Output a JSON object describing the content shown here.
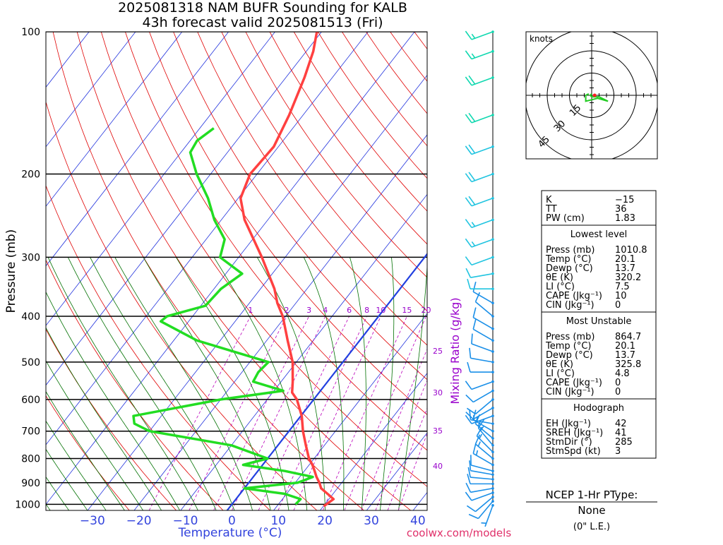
{
  "title": {
    "line1": "2025081318 NAM BUFR Sounding for KALB",
    "line2": "43h forecast valid 2025081513 (Fri)"
  },
  "axes": {
    "ylabel": "Pressure (mb)",
    "xlabel": "Temperature (°C)",
    "mixing_ratio_label": "Mixing Ratio (g/kg)",
    "watermark": "coolwx.com/models"
  },
  "colors": {
    "temperature": "#ff4040",
    "dewpoint": "#22dd22",
    "isotherm": "#2233dd",
    "zero_isotherm": "#2240e0",
    "dry_adiabat": "#e00000",
    "moist_adiabat": "#007000",
    "mixing_ratio": "#bb00bb",
    "mixing_label": "#9900cc",
    "axis_label": "#3344dd",
    "hodograph_line": "#22cc22",
    "watermark": "#e0306a"
  },
  "chart_data": {
    "type": "line",
    "skewt": {
      "pressure_range": [
        1030,
        100
      ],
      "temperature_range_at_1000": [
        -40,
        42
      ],
      "pressure_ticks": [
        100,
        200,
        300,
        400,
        500,
        600,
        700,
        800,
        900,
        1000
      ],
      "temperature_ticks": [
        -30,
        -20,
        -10,
        0,
        10,
        20,
        30,
        40
      ],
      "temperature_tick_labels": [
        "−30",
        "−20",
        "−10",
        "0",
        "10",
        "20",
        "30",
        "40"
      ],
      "mixing_ratio_values": [
        1,
        2,
        3,
        4,
        6,
        8,
        10,
        15,
        20,
        25,
        30,
        35,
        40
      ],
      "mixing_ratio_labels": [
        "1",
        "2",
        "3",
        "4",
        "6",
        "8",
        "10",
        "15",
        "20",
        "25",
        "30",
        "35",
        "40"
      ],
      "grid": true
    },
    "series": [
      {
        "name": "Temperature",
        "points": [
          {
            "p": 1010,
            "t": 20.1
          },
          {
            "p": 1000,
            "t": 20.3
          },
          {
            "p": 975,
            "t": 21.0
          },
          {
            "p": 950,
            "t": 18.8
          },
          {
            "p": 925,
            "t": 16.5
          },
          {
            "p": 900,
            "t": 15.2
          },
          {
            "p": 875,
            "t": 13.6
          },
          {
            "p": 850,
            "t": 12.2
          },
          {
            "p": 825,
            "t": 10.7
          },
          {
            "p": 800,
            "t": 8.9
          },
          {
            "p": 750,
            "t": 6.0
          },
          {
            "p": 700,
            "t": 3.0
          },
          {
            "p": 650,
            "t": 0.2
          },
          {
            "p": 600,
            "t": -3.6
          },
          {
            "p": 580,
            "t": -5.8
          },
          {
            "p": 550,
            "t": -7.5
          },
          {
            "p": 500,
            "t": -10.8
          },
          {
            "p": 450,
            "t": -15.5
          },
          {
            "p": 400,
            "t": -20.6
          },
          {
            "p": 375,
            "t": -24.0
          },
          {
            "p": 350,
            "t": -27.0
          },
          {
            "p": 300,
            "t": -35.0
          },
          {
            "p": 250,
            "t": -45.0
          },
          {
            "p": 225,
            "t": -49.5
          },
          {
            "p": 200,
            "t": -51.5
          },
          {
            "p": 175,
            "t": -51.0
          },
          {
            "p": 150,
            "t": -53.0
          },
          {
            "p": 125,
            "t": -56.0
          },
          {
            "p": 110,
            "t": -58.5
          },
          {
            "p": 100,
            "t": -61.0
          }
        ]
      },
      {
        "name": "Dewpoint",
        "points": [
          {
            "p": 1000,
            "t": 13.7
          },
          {
            "p": 975,
            "t": 13.9
          },
          {
            "p": 950,
            "t": 9.6
          },
          {
            "p": 925,
            "t": 0.0
          },
          {
            "p": 900,
            "t": 10.5
          },
          {
            "p": 875,
            "t": 12.8
          },
          {
            "p": 850,
            "t": 5.8
          },
          {
            "p": 825,
            "t": -4.2
          },
          {
            "p": 800,
            "t": 0.0
          },
          {
            "p": 750,
            "t": -10.0
          },
          {
            "p": 700,
            "t": -30.0
          },
          {
            "p": 675,
            "t": -34.5
          },
          {
            "p": 650,
            "t": -36.0
          },
          {
            "p": 600,
            "t": -20.0
          },
          {
            "p": 575,
            "t": -8.0
          },
          {
            "p": 550,
            "t": -16.0
          },
          {
            "p": 525,
            "t": -16.5
          },
          {
            "p": 500,
            "t": -16.0
          },
          {
            "p": 450,
            "t": -35.0
          },
          {
            "p": 410,
            "t": -46.0
          },
          {
            "p": 400,
            "t": -45.5
          },
          {
            "p": 380,
            "t": -39.0
          },
          {
            "p": 350,
            "t": -38.5
          },
          {
            "p": 325,
            "t": -36.5
          },
          {
            "p": 300,
            "t": -44.0
          },
          {
            "p": 275,
            "t": -46.0
          },
          {
            "p": 250,
            "t": -51.5
          },
          {
            "p": 225,
            "t": -56.5
          },
          {
            "p": 200,
            "t": -63.0
          },
          {
            "p": 180,
            "t": -68.0
          },
          {
            "p": 170,
            "t": -68.5
          },
          {
            "p": 160,
            "t": -67.0
          }
        ]
      }
    ],
    "wind_barbs": [
      {
        "p": 1005,
        "dir": 200,
        "spd": 5
      },
      {
        "p": 985,
        "dir": 220,
        "spd": 10
      },
      {
        "p": 965,
        "dir": 230,
        "spd": 10
      },
      {
        "p": 945,
        "dir": 250,
        "spd": 10
      },
      {
        "p": 925,
        "dir": 260,
        "spd": 10
      },
      {
        "p": 905,
        "dir": 270,
        "spd": 10
      },
      {
        "p": 885,
        "dir": 275,
        "spd": 10
      },
      {
        "p": 865,
        "dir": 280,
        "spd": 10
      },
      {
        "p": 850,
        "dir": 285,
        "spd": 10
      },
      {
        "p": 825,
        "dir": 300,
        "spd": 15
      },
      {
        "p": 800,
        "dir": 310,
        "spd": 15
      },
      {
        "p": 775,
        "dir": 315,
        "spd": 15
      },
      {
        "p": 750,
        "dir": 320,
        "spd": 15
      },
      {
        "p": 725,
        "dir": 310,
        "spd": 15
      },
      {
        "p": 700,
        "dir": 300,
        "spd": 15
      },
      {
        "p": 675,
        "dir": 280,
        "spd": 15
      },
      {
        "p": 650,
        "dir": 250,
        "spd": 10
      },
      {
        "p": 625,
        "dir": 240,
        "spd": 10
      },
      {
        "p": 600,
        "dir": 230,
        "spd": 10
      },
      {
        "p": 575,
        "dir": 240,
        "spd": 10
      },
      {
        "p": 550,
        "dir": 250,
        "spd": 10
      },
      {
        "p": 525,
        "dir": 270,
        "spd": 10
      },
      {
        "p": 500,
        "dir": 280,
        "spd": 10
      },
      {
        "p": 475,
        "dir": 290,
        "spd": 10
      },
      {
        "p": 450,
        "dir": 300,
        "spd": 10
      },
      {
        "p": 425,
        "dir": 300,
        "spd": 10
      },
      {
        "p": 400,
        "dir": 310,
        "spd": 10
      },
      {
        "p": 375,
        "dir": 300,
        "spd": 10
      },
      {
        "p": 350,
        "dir": 270,
        "spd": 10
      },
      {
        "p": 325,
        "dir": 260,
        "spd": 10
      },
      {
        "p": 300,
        "dir": 250,
        "spd": 10
      },
      {
        "p": 275,
        "dir": 250,
        "spd": 15
      },
      {
        "p": 250,
        "dir": 250,
        "spd": 15
      },
      {
        "p": 225,
        "dir": 250,
        "spd": 20
      },
      {
        "p": 200,
        "dir": 250,
        "spd": 20
      },
      {
        "p": 175,
        "dir": 250,
        "spd": 20
      },
      {
        "p": 150,
        "dir": 250,
        "spd": 20
      },
      {
        "p": 125,
        "dir": 250,
        "spd": 20
      },
      {
        "p": 110,
        "dir": 250,
        "spd": 15
      },
      {
        "p": 100,
        "dir": 250,
        "spd": 15
      }
    ],
    "hodograph": {
      "unit_label": "knots",
      "rings": [
        15,
        30,
        45
      ],
      "ring_labels": [
        "15",
        "30",
        "45"
      ],
      "points": [
        {
          "u": -2,
          "v": 1
        },
        {
          "u": -4,
          "v": 0
        },
        {
          "u": -4,
          "v": -4
        },
        {
          "u": 0,
          "v": -3
        },
        {
          "u": 4,
          "v": -2
        },
        {
          "u": 11,
          "v": -4
        },
        {
          "u": 5,
          "v": -1
        },
        {
          "u": 0,
          "v": -1
        },
        {
          "u": -1,
          "v": 0
        },
        {
          "u": 0,
          "v": 1
        }
      ],
      "storm_motion": {
        "u": 2,
        "v": 0
      }
    }
  },
  "indices": {
    "top": [
      {
        "label": "K",
        "value": "−15"
      },
      {
        "label": "TT",
        "value": "36"
      },
      {
        "label": "PW (cm)",
        "value": "1.83"
      }
    ],
    "lowest_level_header": "Lowest level",
    "lowest_level": [
      {
        "label": "Press (mb)",
        "value": "1010.8"
      },
      {
        "label": "Temp (°C)",
        "value": "20.1"
      },
      {
        "label": "Dewp (°C)",
        "value": "13.7"
      },
      {
        "label": "θE (K)",
        "value": "320.2"
      },
      {
        "label": "LI (°C)",
        "value": "7.5"
      },
      {
        "label": "CAPE (Jkg⁻¹)",
        "value": "10"
      },
      {
        "label": "CIN (Jkg⁻¹)",
        "value": "0"
      }
    ],
    "most_unstable_header": "Most Unstable",
    "most_unstable": [
      {
        "label": "Press (mb)",
        "value": "864.7"
      },
      {
        "label": "Temp (°C)",
        "value": "20.1"
      },
      {
        "label": "Dewp (°C)",
        "value": "13.7"
      },
      {
        "label": "θE (K)",
        "value": "325.8"
      },
      {
        "label": "LI (°C)",
        "value": "4.8"
      },
      {
        "label": "CAPE (Jkg⁻¹)",
        "value": "0"
      },
      {
        "label": "CIN (Jkg⁻¹)",
        "value": "0"
      }
    ],
    "hodograph_header": "Hodograph",
    "hodograph": [
      {
        "label": "EH (Jkg⁻¹)",
        "value": "42"
      },
      {
        "label": "SREH (Jkg⁻¹)",
        "value": "41"
      },
      {
        "label": "StmDir (°)",
        "value": "285"
      },
      {
        "label": "StmSpd (kt)",
        "value": "3"
      }
    ]
  },
  "ptype": {
    "header": "NCEP 1-Hr PType:",
    "value": "None",
    "note": "(0\" L.E.)"
  }
}
